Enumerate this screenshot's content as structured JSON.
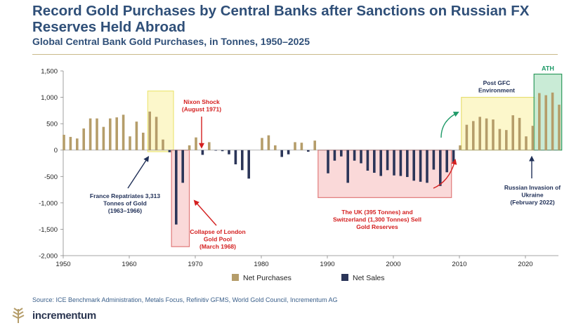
{
  "header": {
    "title": "Record Gold Purchases by Central Banks after Sanctions on Russian FX Reserves Held Abroad",
    "subtitle": "Global Central Bank Gold Purchases, in Tonnes, 1950–2025"
  },
  "footer": {
    "source": "Source: ICE Benchmark Administration, Metals Focus, Refinitiv GFMS, World Gold Council, Incrementum AG",
    "brand": "incrementum"
  },
  "colors": {
    "purchases": "#b59d6a",
    "sales": "#2b3558",
    "text": "#2f4f78",
    "red": "#d42020",
    "navy": "#1f2f57"
  },
  "chart_data": {
    "type": "bar",
    "title": "Global Central Bank Gold Purchases, in Tonnes, 1950–2025",
    "xlim": [
      1950,
      2025
    ],
    "ylim": [
      -2000,
      1500
    ],
    "yticks": [
      1500,
      1000,
      500,
      0,
      -500,
      -1000,
      -1500,
      -2000
    ],
    "ytick_labels": [
      "1,500",
      "1,000",
      "500",
      "0",
      "-500",
      "-1,000",
      "-1,500",
      "-2,000"
    ],
    "xticks": [
      1950,
      1960,
      1970,
      1980,
      1990,
      2000,
      2010,
      2020
    ],
    "xtick_labels": [
      "1950",
      "1960",
      "1970",
      "1980",
      "1990",
      "2000",
      "2010",
      "2020"
    ],
    "legend_position": "bottom",
    "series": [
      {
        "name": "Net Purchases",
        "color": "#b59d6a"
      },
      {
        "name": "Net Sales",
        "color": "#2b3558"
      }
    ],
    "x": [
      1950,
      1951,
      1952,
      1953,
      1954,
      1955,
      1956,
      1957,
      1958,
      1959,
      1960,
      1961,
      1962,
      1963,
      1964,
      1965,
      1966,
      1967,
      1968,
      1969,
      1970,
      1971,
      1972,
      1973,
      1974,
      1975,
      1976,
      1977,
      1978,
      1979,
      1980,
      1981,
      1982,
      1983,
      1984,
      1985,
      1986,
      1987,
      1988,
      1989,
      1990,
      1991,
      1992,
      1993,
      1994,
      1995,
      1996,
      1997,
      1998,
      1999,
      2000,
      2001,
      2002,
      2003,
      2004,
      2005,
      2006,
      2007,
      2008,
      2009,
      2010,
      2011,
      2012,
      2013,
      2014,
      2015,
      2016,
      2017,
      2018,
      2019,
      2020,
      2021,
      2022,
      2023,
      2024,
      2025
    ],
    "values": [
      290,
      250,
      220,
      410,
      600,
      600,
      440,
      600,
      620,
      670,
      260,
      540,
      330,
      730,
      630,
      200,
      -40,
      -1410,
      -620,
      90,
      240,
      -90,
      150,
      -10,
      -20,
      -80,
      -270,
      -380,
      -540,
      0,
      230,
      280,
      90,
      -130,
      -80,
      150,
      140,
      -30,
      180,
      0,
      -440,
      -200,
      -120,
      -620,
      -200,
      -250,
      -390,
      -430,
      -490,
      -380,
      -480,
      -490,
      -510,
      -580,
      -600,
      -620,
      -370,
      -680,
      -420,
      -250,
      90,
      480,
      550,
      630,
      600,
      580,
      400,
      380,
      660,
      610,
      260,
      460,
      1080,
      1040,
      1090,
      860
    ],
    "boxes": [
      {
        "x0": 1962.8,
        "x1": 1966.7,
        "y0": -30,
        "y1": 1120,
        "label": ""
      },
      {
        "x0": 1966.4,
        "x1": 1969.1,
        "y0": -1830,
        "y1": 0,
        "label": ""
      },
      {
        "x0": 1988.6,
        "x1": 2008.8,
        "y0": -900,
        "y1": 0,
        "label": ""
      },
      {
        "x0": 2010.3,
        "x1": 2021.5,
        "y0": 0,
        "y1": 1000,
        "label": ""
      },
      {
        "x0": 2021.3,
        "x1": 2025.5,
        "y0": 0,
        "y1": 1440,
        "label": "ATH"
      }
    ],
    "annotations": [
      {
        "text": [
          "France Repatriates 3,313",
          "Tonnes of Gold",
          "(1963–1966)"
        ],
        "color": "navy"
      },
      {
        "text": [
          "Nixon Shock",
          "(August 1971)"
        ],
        "color": "red"
      },
      {
        "text": [
          "Collapse of London",
          "Gold Pool",
          "(March 1968)"
        ],
        "color": "red"
      },
      {
        "text": [
          "The UK (395 Tonnes) and",
          "Switzerland (1,300 Tonnes) Sell",
          "Gold Reserves"
        ],
        "color": "red"
      },
      {
        "text": [
          "Post GFC",
          "Environment"
        ],
        "color": "navy"
      },
      {
        "text": [
          "Russian Invasion of",
          "Ukraine",
          "(February 2022)"
        ],
        "color": "navy"
      }
    ]
  }
}
